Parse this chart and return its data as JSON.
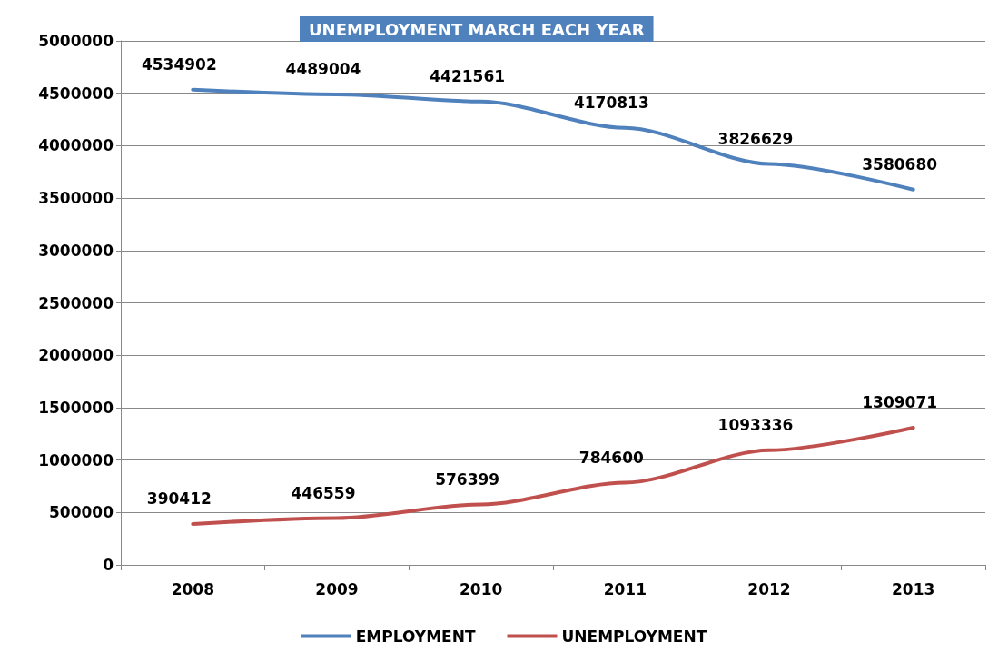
{
  "chart_data": {
    "type": "line",
    "title": "UNEMPLOYMENT MARCH EACH YEAR",
    "categories": [
      "2008",
      "2009",
      "2010",
      "2011",
      "2012",
      "2013"
    ],
    "series": [
      {
        "name": "EMPLOYMENT",
        "color": "#4f81bd",
        "values": [
          4534902,
          4489004,
          4421561,
          4170813,
          3826629,
          3580680
        ]
      },
      {
        "name": "UNEMPLOYMENT",
        "color": "#c0504d",
        "values": [
          390412,
          446559,
          576399,
          784600,
          1093336,
          1309071
        ]
      }
    ],
    "ylim": [
      0,
      5000000
    ],
    "yticks": [
      0,
      500000,
      1000000,
      1500000,
      2000000,
      2500000,
      3000000,
      3500000,
      4000000,
      4500000,
      5000000
    ],
    "grid": "y",
    "legend": "bottom",
    "data_labels": true,
    "marker": "none",
    "line_style": "solid"
  }
}
